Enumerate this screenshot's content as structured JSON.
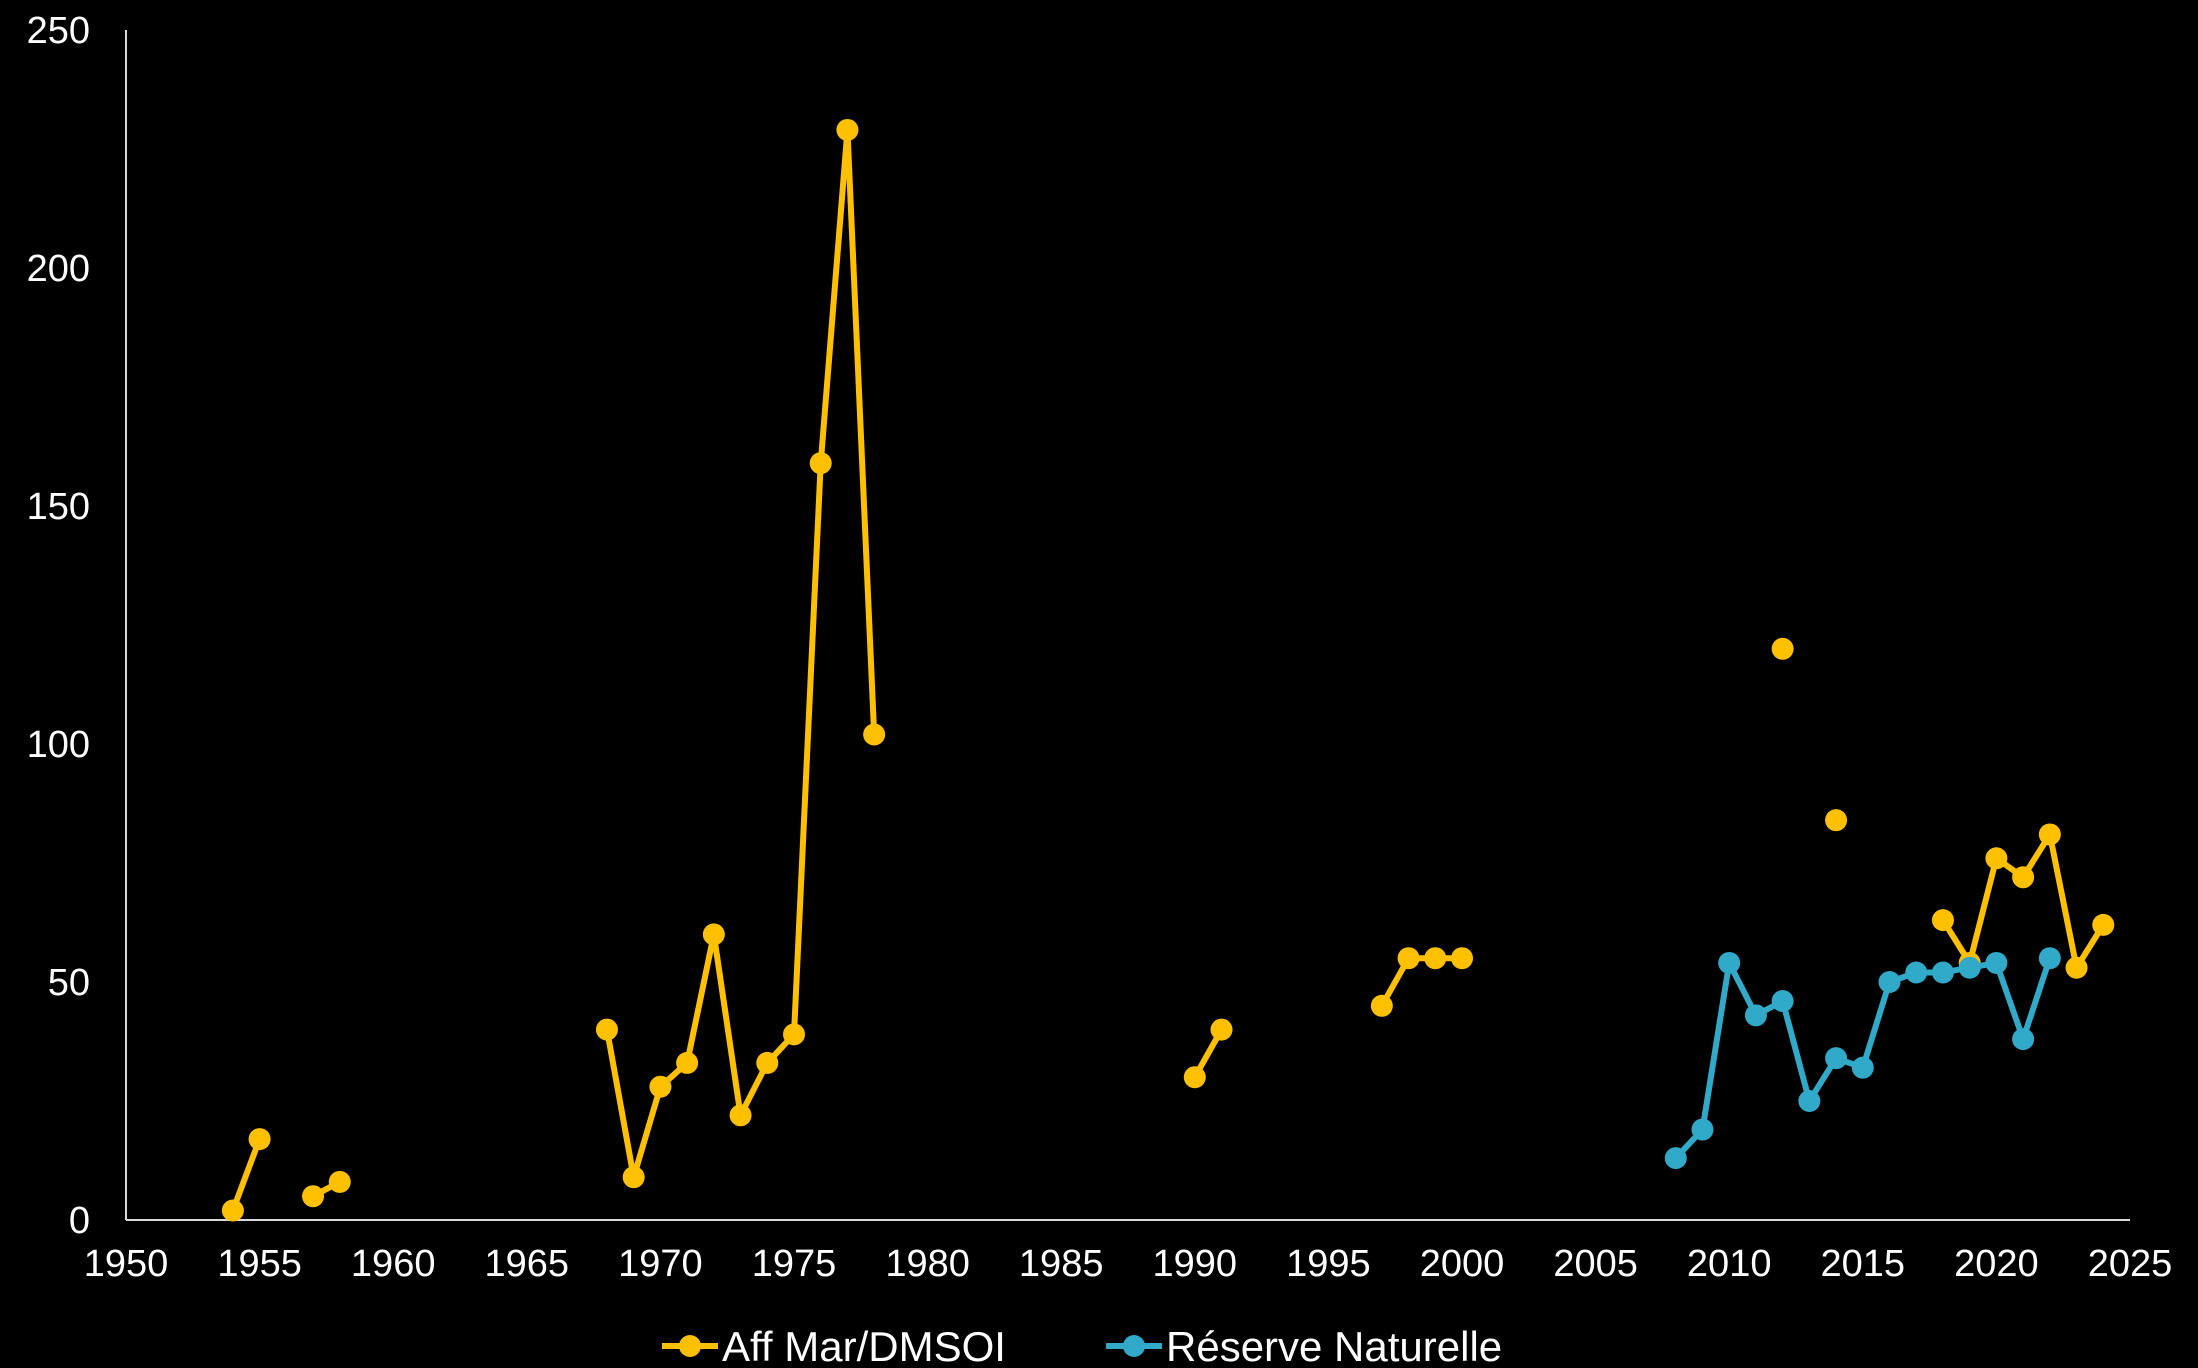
{
  "chart_data": {
    "type": "line",
    "title": "",
    "xlabel": "",
    "ylabel": "",
    "xlim": [
      1950,
      2025
    ],
    "ylim": [
      0,
      250
    ],
    "x_ticks": [
      "1950",
      "1955",
      "1960",
      "1965",
      "1970",
      "1975",
      "1980",
      "1985",
      "1990",
      "1995",
      "2000",
      "2005",
      "2010",
      "2015",
      "2020",
      "2025"
    ],
    "y_ticks": [
      "0",
      "50",
      "100",
      "150",
      "200",
      "250"
    ],
    "grid": false,
    "legend_position": "bottom",
    "series": [
      {
        "name": "Aff Mar/DMSOI",
        "color": "#FFC000",
        "points": [
          [
            1954,
            2
          ],
          [
            1955,
            17
          ],
          null,
          [
            1957,
            5
          ],
          [
            1958,
            8
          ],
          null,
          [
            1968,
            40
          ],
          [
            1969,
            9
          ],
          [
            1970,
            28
          ],
          [
            1971,
            33
          ],
          [
            1972,
            60
          ],
          [
            1973,
            22
          ],
          [
            1974,
            33
          ],
          [
            1975,
            39
          ],
          [
            1976,
            159
          ],
          [
            1977,
            229
          ],
          [
            1978,
            102
          ],
          null,
          [
            1990,
            30
          ],
          [
            1991,
            40
          ],
          null,
          [
            1997,
            45
          ],
          [
            1998,
            55
          ],
          [
            1999,
            55
          ],
          [
            2000,
            55
          ],
          null,
          [
            2012,
            120
          ],
          null,
          [
            2014,
            84
          ],
          null,
          [
            2018,
            63
          ],
          [
            2019,
            54
          ],
          [
            2020,
            76
          ],
          [
            2021,
            72
          ],
          [
            2022,
            81
          ],
          [
            2023,
            53
          ],
          [
            2024,
            62
          ]
        ]
      },
      {
        "name": "Réserve Naturelle",
        "color": "#31A9C8",
        "points": [
          [
            2008,
            13
          ],
          [
            2009,
            19
          ],
          [
            2010,
            54
          ],
          [
            2011,
            43
          ],
          [
            2012,
            46
          ],
          [
            2013,
            25
          ],
          [
            2014,
            34
          ],
          [
            2015,
            32
          ],
          [
            2016,
            50
          ],
          [
            2017,
            52
          ],
          [
            2018,
            52
          ],
          [
            2019,
            53
          ],
          [
            2020,
            54
          ],
          [
            2021,
            38
          ],
          [
            2022,
            55
          ]
        ]
      }
    ]
  }
}
